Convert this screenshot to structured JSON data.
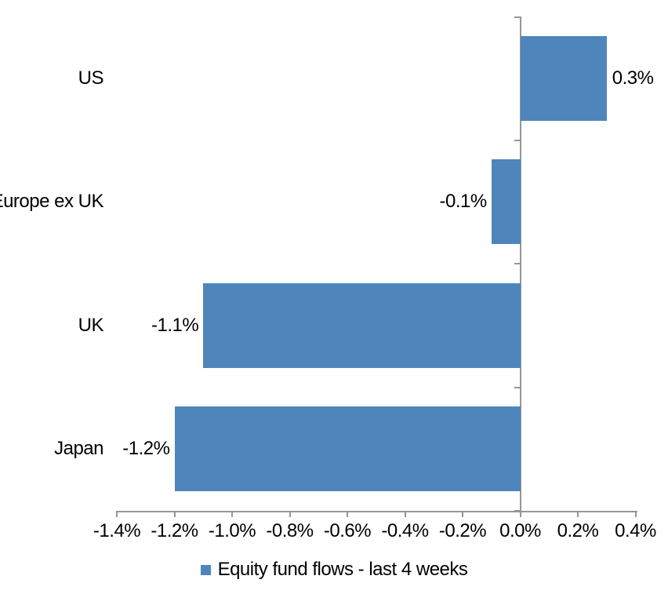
{
  "chart_data": {
    "type": "bar",
    "orientation": "horizontal",
    "title": "",
    "categories": [
      "US",
      "Europe ex UK",
      "UK",
      "Japan"
    ],
    "series": [
      {
        "name": "Equity fund flows - last 4 weeks",
        "values": [
          0.3,
          -0.1,
          -1.1,
          -1.2
        ],
        "data_labels": [
          "0.3%",
          "-0.1%",
          "-1.1%",
          "-1.2%"
        ],
        "color": "#4E86BC"
      }
    ],
    "xlim": [
      -1.4,
      0.4
    ],
    "x_tick_step": 0.2,
    "x_ticks": [
      -1.4,
      -1.2,
      -1.0,
      -0.8,
      -0.6,
      -0.4,
      -0.2,
      0.0,
      0.2,
      0.4
    ],
    "x_tick_labels": [
      "-1.4%",
      "-1.2%",
      "-1.0%",
      "-0.8%",
      "-0.6%",
      "-0.4%",
      "-0.2%",
      "0.0%",
      "0.2%",
      "0.4%"
    ],
    "grid": false,
    "legend": {
      "position": "bottom",
      "entries": [
        {
          "label": "Equity fund flows - last 4 weeks",
          "swatch_color": "#4E86BC"
        }
      ]
    },
    "colors": {
      "bar": "#4E86BC",
      "axis": "#969696",
      "text": "#000000",
      "background": "#FFFFFF"
    }
  }
}
